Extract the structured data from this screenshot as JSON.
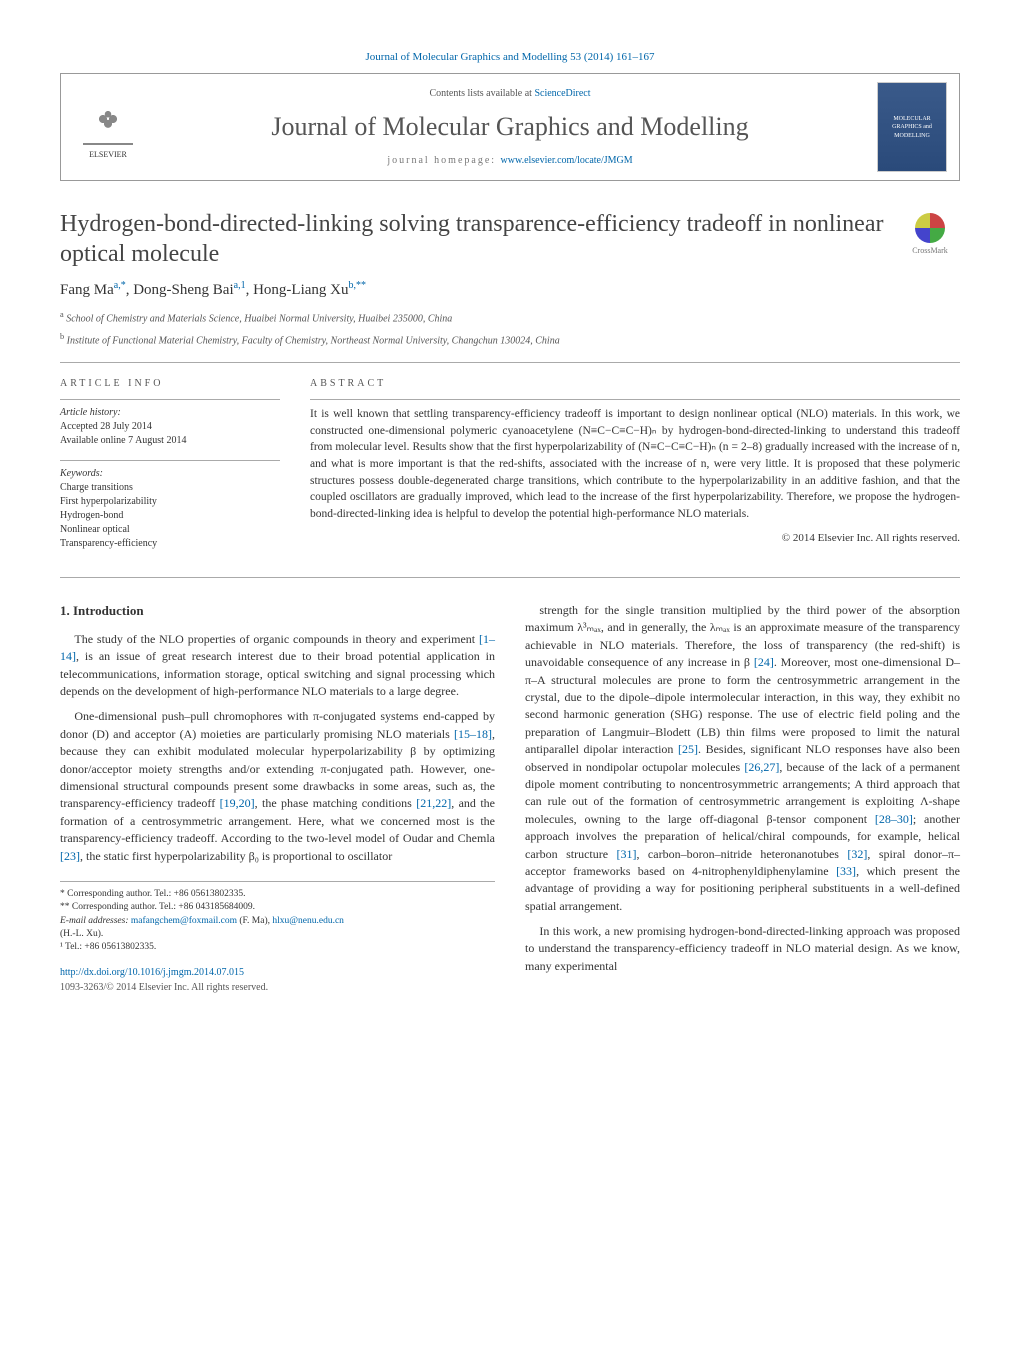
{
  "header": {
    "top_link_text": "Journal of Molecular Graphics and Modelling 53 (2014) 161–167",
    "contents_text": "Contents lists available at ",
    "contents_link": "ScienceDirect",
    "journal_name": "Journal of Molecular Graphics and Modelling",
    "homepage_label": "journal homepage: ",
    "homepage_url": "www.elsevier.com/locate/JMGM",
    "elsevier_label": "ELSEVIER",
    "cover_label": "MOLECULAR GRAPHICS and MODELLING",
    "crossmark_label": "CrossMark"
  },
  "article": {
    "title": "Hydrogen-bond-directed-linking solving transparence-efficiency tradeoff in nonlinear optical molecule",
    "authors_html": "Fang Ma<sup>a,*</sup>, Dong-Sheng Bai<sup>a,1</sup>, Hong-Liang Xu<sup>b,**</sup>",
    "affiliations": [
      {
        "sup": "a",
        "text": "School of Chemistry and Materials Science, Huaibei Normal University, Huaibei 235000, China"
      },
      {
        "sup": "b",
        "text": "Institute of Functional Material Chemistry, Faculty of Chemistry, Northeast Normal University, Changchun 130024, China"
      }
    ]
  },
  "info": {
    "heading": "ARTICLE INFO",
    "history_label": "Article history:",
    "accepted": "Accepted 28 July 2014",
    "online": "Available online 7 August 2014",
    "keywords_label": "Keywords:",
    "keywords": [
      "Charge transitions",
      "First hyperpolarizability",
      "Hydrogen-bond",
      "Nonlinear optical",
      "Transparency-efficiency"
    ]
  },
  "abstract": {
    "heading": "ABSTRACT",
    "text": "It is well known that settling transparency-efficiency tradeoff is important to design nonlinear optical (NLO) materials. In this work, we constructed one-dimensional polymeric cyanoacetylene (N≡C−C≡C−H)ₙ by hydrogen-bond-directed-linking to understand this tradeoff from molecular level. Results show that the first hyperpolarizability of (N≡C−C≡C−H)ₙ (n = 2–8) gradually increased with the increase of n, and what is more important is that the red-shifts, associated with the increase of n, were very little. It is proposed that these polymeric structures possess double-degenerated charge transitions, which contribute to the hyperpolarizability in an additive fashion, and that the coupled oscillators are gradually improved, which lead to the increase of the first hyperpolarizability. Therefore, we propose the hydrogen-bond-directed-linking idea is helpful to develop the potential high-performance NLO materials.",
    "copyright": "© 2014 Elsevier Inc. All rights reserved."
  },
  "body": {
    "section_heading": "1. Introduction",
    "left_paragraphs": [
      "The study of the NLO properties of organic compounds in theory and experiment <span class=\"cite\">[1–14]</span>, is an issue of great research interest due to their broad potential application in telecommunications, information storage, optical switching and signal processing which depends on the development of high-performance NLO materials to a large degree.",
      "One-dimensional push–pull chromophores with π-conjugated systems end-capped by donor (D) and acceptor (A) moieties are particularly promising NLO materials <span class=\"cite\">[15–18]</span>, because they can exhibit modulated molecular hyperpolarizability β by optimizing donor/acceptor moiety strengths and/or extending π-conjugated path. However, one-dimensional structural compounds present some drawbacks in some areas, such as, the transparency-efficiency tradeoff <span class=\"cite\">[19,20]</span>, the phase matching conditions <span class=\"cite\">[21,22]</span>, and the formation of a centrosymmetric arrangement. Here, what we concerned most is the transparency-efficiency tradeoff. According to the two-level model of Oudar and Chemla <span class=\"cite\">[23]</span>, the static first hyperpolarizability β₀ is proportional to oscillator"
    ],
    "right_paragraphs": [
      "strength for the single transition multiplied by the third power of the absorption maximum λ³ₘₐₓ, and in generally, the λₘₐₓ is an approximate measure of the transparency achievable in NLO materials. Therefore, the loss of transparency (the red-shift) is unavoidable consequence of any increase in β <span class=\"cite\">[24]</span>. Moreover, most one-dimensional D–π–A structural molecules are prone to form the centrosymmetric arrangement in the crystal, due to the dipole–dipole intermolecular interaction, in this way, they exhibit no second harmonic generation (SHG) response. The use of electric field poling and the preparation of Langmuir–Blodett (LB) thin films were proposed to limit the natural antiparallel dipolar interaction <span class=\"cite\">[25]</span>. Besides, significant NLO responses have also been observed in nondipolar octupolar molecules <span class=\"cite\">[26,27]</span>, because of the lack of a permanent dipole moment contributing to noncentrosymmetric arrangements; A third approach that can rule out of the formation of centrosymmetric arrangement is exploiting Λ-shape molecules, owning to the large off-diagonal β-tensor component <span class=\"cite\">[28–30]</span>; another approach involves the preparation of helical/chiral compounds, for example, helical carbon structure <span class=\"cite\">[31]</span>, carbon–boron–nitride heteronanotubes <span class=\"cite\">[32]</span>, spiral donor–π–acceptor frameworks based on 4-nitrophenyldiphenylamine <span class=\"cite\">[33]</span>, which present the advantage of providing a way for positioning peripheral substituents in a well-defined spatial arrangement.",
      "In this work, a new promising hydrogen-bond-directed-linking approach was proposed to understand the transparency-efficiency tradeoff in NLO material design. As we know, many experimental"
    ]
  },
  "footnotes": {
    "lines": [
      "* Corresponding author. Tel.: +86 05613802335.",
      "** Corresponding author. Tel.: +86 043185684009."
    ],
    "email_label": "E-mail addresses: ",
    "email1": "mafangchem@foxmail.com",
    "email1_who": " (F. Ma), ",
    "email2": "hlxu@nenu.edu.cn",
    "email2_who": "(H.-L. Xu).",
    "tel_line": "¹ Tel.: +86 05613802335."
  },
  "footer": {
    "doi_url": "http://dx.doi.org/10.1016/j.jmgm.2014.07.015",
    "issn_line": "1093-3263/© 2014 Elsevier Inc. All rights reserved."
  },
  "colors": {
    "link": "#0066aa",
    "text": "#333333",
    "rule": "#aaaaaa"
  }
}
